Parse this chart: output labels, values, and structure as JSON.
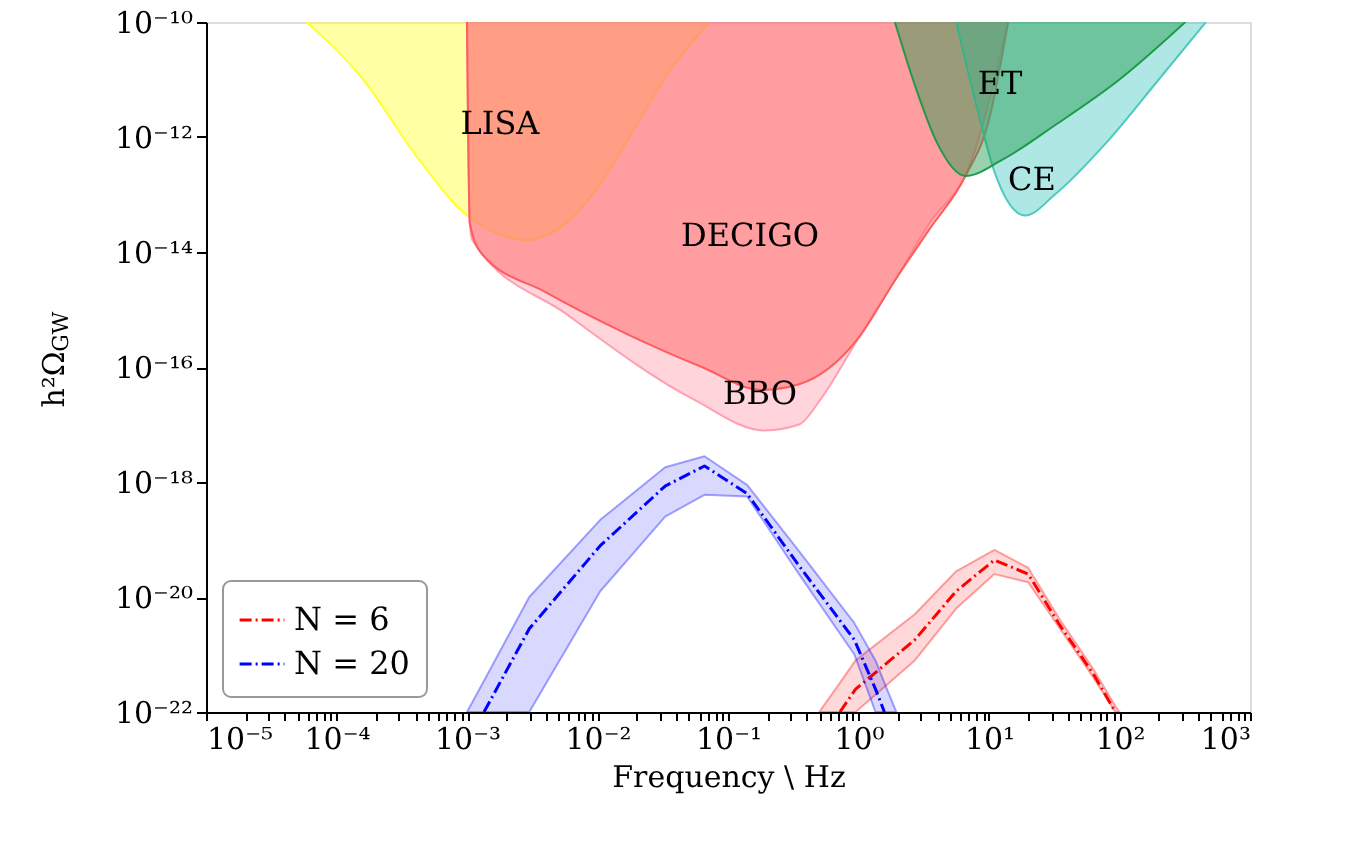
{
  "chart_data": {
    "type": "line",
    "xlabel": "Frequency \\ Hz",
    "ylabel": "h²Ω$_{GW}$",
    "log": "xy",
    "grid": false,
    "legend": "bottom left",
    "xlim": [
      1e-05,
      1000
    ],
    "ylim": [
      1e-22,
      1e-10
    ],
    "xticks": [
      {
        "value": 1e-05,
        "label": "10⁻⁵"
      },
      {
        "value": 2e-05,
        "label": null
      },
      {
        "value": 3e-05,
        "label": null
      },
      {
        "value": 4e-05,
        "label": null
      },
      {
        "value": 5e-05,
        "label": null
      },
      {
        "value": 6e-05,
        "label": null
      },
      {
        "value": 7e-05,
        "label": null
      },
      {
        "value": 8e-05,
        "label": null
      },
      {
        "value": 9e-05,
        "label": null
      },
      {
        "value": 0.0001,
        "label": "10⁻⁴"
      },
      {
        "value": 0.0002,
        "label": null
      },
      {
        "value": 0.0003,
        "label": null
      },
      {
        "value": 0.0004,
        "label": null
      },
      {
        "value": 0.0005,
        "label": null
      },
      {
        "value": 0.0006,
        "label": null
      },
      {
        "value": 0.0007,
        "label": null
      },
      {
        "value": 0.0008,
        "label": null
      },
      {
        "value": 0.0009,
        "label": null
      },
      {
        "value": 0.001,
        "label": "10⁻³"
      },
      {
        "value": 0.002,
        "label": null
      },
      {
        "value": 0.003,
        "label": null
      },
      {
        "value": 0.004,
        "label": null
      },
      {
        "value": 0.005,
        "label": null
      },
      {
        "value": 0.006,
        "label": null
      },
      {
        "value": 0.007,
        "label": null
      },
      {
        "value": 0.008,
        "label": null
      },
      {
        "value": 0.009,
        "label": null
      },
      {
        "value": 0.01,
        "label": "10⁻²"
      },
      {
        "value": 0.02,
        "label": null
      },
      {
        "value": 0.03,
        "label": null
      },
      {
        "value": 0.04,
        "label": null
      },
      {
        "value": 0.05,
        "label": null
      },
      {
        "value": 0.06,
        "label": null
      },
      {
        "value": 0.07,
        "label": null
      },
      {
        "value": 0.08,
        "label": null
      },
      {
        "value": 0.09,
        "label": null
      },
      {
        "value": 0.1,
        "label": "10⁻¹"
      },
      {
        "value": 0.2,
        "label": null
      },
      {
        "value": 0.3,
        "label": null
      },
      {
        "value": 0.4,
        "label": null
      },
      {
        "value": 0.5,
        "label": null
      },
      {
        "value": 0.6,
        "label": null
      },
      {
        "value": 0.7,
        "label": null
      },
      {
        "value": 0.8,
        "label": null
      },
      {
        "value": 0.9,
        "label": null
      },
      {
        "value": 1,
        "label": "10⁰"
      },
      {
        "value": 2,
        "label": null
      },
      {
        "value": 3,
        "label": null
      },
      {
        "value": 4,
        "label": null
      },
      {
        "value": 5,
        "label": null
      },
      {
        "value": 6,
        "label": null
      },
      {
        "value": 7,
        "label": null
      },
      {
        "value": 8,
        "label": null
      },
      {
        "value": 9,
        "label": null
      },
      {
        "value": 10,
        "label": "10¹"
      },
      {
        "value": 20,
        "label": null
      },
      {
        "value": 30,
        "label": null
      },
      {
        "value": 40,
        "label": null
      },
      {
        "value": 50,
        "label": null
      },
      {
        "value": 60,
        "label": null
      },
      {
        "value": 70,
        "label": null
      },
      {
        "value": 80,
        "label": null
      },
      {
        "value": 90,
        "label": null
      },
      {
        "value": 100,
        "label": "10²"
      },
      {
        "value": 200,
        "label": null
      },
      {
        "value": 300,
        "label": null
      },
      {
        "value": 400,
        "label": null
      },
      {
        "value": 500,
        "label": null
      },
      {
        "value": 600,
        "label": null
      },
      {
        "value": 700,
        "label": null
      },
      {
        "value": 800,
        "label": null
      },
      {
        "value": 900,
        "label": null
      },
      {
        "value": 1000,
        "label": "10³"
      }
    ],
    "yticks": [
      {
        "value": 1e-22,
        "label": "10⁻²²"
      },
      {
        "value": 1e-20,
        "label": "10⁻²⁰"
      },
      {
        "value": 1e-18,
        "label": "10⁻¹⁸"
      },
      {
        "value": 1e-16,
        "label": "10⁻¹⁶"
      },
      {
        "value": 1e-14,
        "label": "10⁻¹⁴"
      },
      {
        "value": 1e-12,
        "label": "10⁻¹²"
      },
      {
        "value": 1e-10,
        "label": "10⁻¹⁰"
      }
    ],
    "series": [
      {
        "type": "area",
        "name": "LISA",
        "color": "#ffff33",
        "x": [
          5.9e-05,
          0.00016,
          0.0004,
          0.001,
          0.0018,
          0.0028,
          0.005,
          0.01,
          0.017,
          0.035,
          0.072
        ],
        "values": [
          1e-10,
          1e-11,
          5e-13,
          4.3e-14,
          2e-14,
          1.6e-14,
          2.5e-14,
          1.3e-13,
          8.9e-13,
          1.3e-11,
          1e-10
        ]
      },
      {
        "type": "area",
        "name": "BBO",
        "color": "#ffa0b0",
        "x": [
          0.001,
          0.00105,
          0.0011,
          0.0058,
          0.055,
          0.19,
          0.35,
          0.51,
          1,
          1.9,
          3.5,
          7.1,
          14
        ],
        "values": [
          1e-10,
          3.2e-14,
          1.6e-14,
          8.3e-16,
          2.7e-17,
          7.9e-18,
          1e-17,
          2.7e-17,
          3.2e-16,
          3.2e-15,
          3.2e-14,
          3.2e-13,
          1e-10
        ]
      },
      {
        "type": "area",
        "name": "DECIGO",
        "color": "#ff5c5c",
        "x": [
          0.001,
          0.00105,
          0.0013,
          0.004,
          0.017,
          0.063,
          0.18,
          0.35,
          1,
          1.9,
          3.5,
          6.6,
          10,
          14
        ],
        "values": [
          1e-10,
          3.2e-14,
          9.3e-15,
          2e-15,
          3.7e-16,
          1e-16,
          4e-17,
          5e-17,
          3.2e-16,
          3.2e-15,
          2.5e-14,
          2.1e-13,
          2e-12,
          1e-10
        ]
      },
      {
        "type": "area",
        "name": "CE",
        "color": "#4cc9c0",
        "x": [
          5.6,
          7.9,
          11,
          19,
          32,
          79,
          200,
          460
        ],
        "values": [
          1e-10,
          4e-12,
          2.5e-13,
          4.3e-14,
          1e-13,
          7.9e-13,
          1e-11,
          1e-10
        ]
      },
      {
        "type": "area",
        "name": "ET",
        "color": "#1f9a4a",
        "x": [
          1.9,
          2.8,
          4.0,
          6.6,
          12.6,
          32,
          100,
          320
        ],
        "values": [
          1e-10,
          6.3e-12,
          7.9e-13,
          2.1e-13,
          4e-13,
          1.6e-12,
          1e-11,
          1e-10
        ]
      },
      {
        "name": "N = 6",
        "color": "#ff0000",
        "line_style": "dashdot",
        "x": [
          0.5,
          0.72,
          0.95,
          2.7,
          5.6,
          11,
          20,
          35,
          63,
          93,
          100
        ],
        "values": [
          null,
          1e-22,
          2.5e-22,
          1.8e-21,
          1.26e-20,
          4.4e-20,
          2.5e-20,
          3.2e-21,
          4.6e-22,
          1e-22,
          null
        ],
        "upper": [
          1e-22,
          3.2e-22,
          7.9e-22,
          5e-21,
          2.8e-20,
          6.6e-20,
          3.2e-20,
          4e-21,
          5.6e-22,
          1.26e-22,
          1e-22
        ],
        "lower": [
          1e-22,
          1e-22,
          1e-22,
          7.9e-22,
          6.3e-21,
          2.5e-20,
          1.8e-20,
          2.8e-21,
          4e-22,
          1e-22,
          1e-22
        ]
      },
      {
        "name": "N = 20",
        "color": "#0000ff",
        "line_style": "dashdot",
        "x": [
          0.001,
          0.00135,
          0.003,
          0.0105,
          0.033,
          0.066,
          0.14,
          0.35,
          0.93,
          1.35,
          1.58,
          1.95
        ],
        "values": [
          null,
          1e-22,
          2.8e-21,
          7.8e-20,
          8.5e-19,
          1.9e-18,
          6.3e-19,
          3.5e-20,
          1.8e-21,
          2.5e-22,
          1e-22,
          null
        ],
        "upper": [
          1e-22,
          3.5e-22,
          1e-20,
          2.2e-19,
          1.8e-18,
          2.8e-18,
          8.9e-19,
          6.3e-20,
          3.5e-21,
          7.9e-22,
          3.2e-22,
          1e-22
        ],
        "lower": [
          1e-22,
          1e-22,
          1e-22,
          1.26e-20,
          2.5e-19,
          6e-19,
          5.6e-19,
          2.5e-20,
          1e-21,
          1e-22,
          1e-22,
          1e-22
        ]
      }
    ]
  }
}
